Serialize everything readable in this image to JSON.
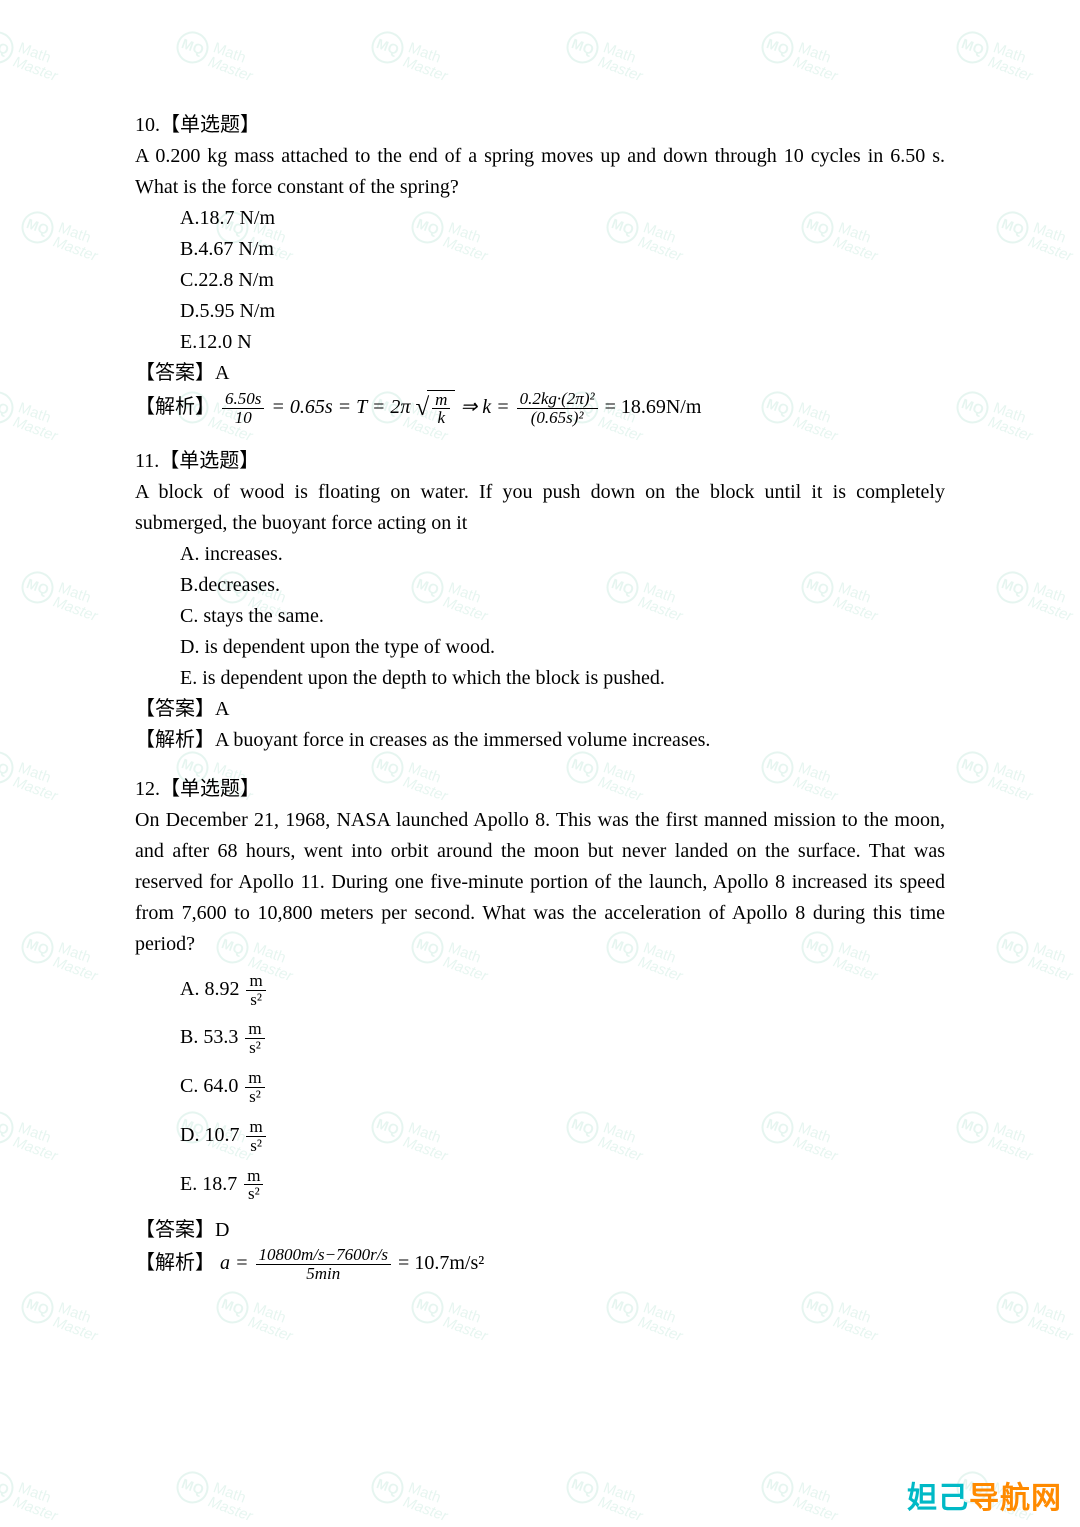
{
  "watermark": {
    "circle_text": "MQ",
    "line1": "Math",
    "line2": "Master",
    "color": "#1aa778",
    "opacity": 0.1,
    "rotation_deg": 20
  },
  "footer": {
    "part1": "妲己",
    "part2": "导航网",
    "color1": "#00b9c6",
    "color2": "#ff8a00"
  },
  "q10": {
    "number": "10.",
    "tag": "【单选题】",
    "body": "A 0.200 kg mass attached to the end of a spring moves up and down through 10 cycles in 6.50 s. What is the force constant of the spring?",
    "options": {
      "A": "A.18.7 N/m",
      "B": "B.4.67 N/m",
      "C": "C.22.8 N/m",
      "D": "D.5.95 N/m",
      "E": "E.12.0 N"
    },
    "answer_label": "【答案】",
    "answer": "A",
    "explain_label": "【解析】",
    "math": {
      "frac1_num": "6.50s",
      "frac1_den": "10",
      "eq1": " = 0.65s = T = 2π",
      "sqrt_num": "m",
      "sqrt_den": "k",
      "arrow": " ⇒ k = ",
      "frac2_num": "0.2kg·(2π)²",
      "frac2_den": "(0.65s)²",
      "result": " = 18.69N/m"
    }
  },
  "q11": {
    "number": "11.",
    "tag": "【单选题】",
    "body": "A block of wood is floating on water. If you push down on the block until it is completely submerged, the buoyant force acting on it",
    "options": {
      "A": "A. increases.",
      "B": "B.decreases.",
      "C": "C. stays the same.",
      "D": "D. is dependent upon the type of wood.",
      "E": "E. is dependent upon the depth to which the block is pushed."
    },
    "answer_label": "【答案】",
    "answer": "A",
    "explain_label": "【解析】",
    "explain": "A buoyant force in creases as the immersed volume increases."
  },
  "q12": {
    "number": "12.",
    "tag": "【单选题】",
    "body": "On December 21, 1968, NASA launched Apollo 8. This was the first manned mission to the moon, and after 68 hours, went into orbit around the moon but never landed on the surface. That was reserved for Apollo 11. During one five-minute portion of the launch, Apollo 8 increased its speed from 7,600 to 10,800 meters per second. What was the acceleration of Apollo 8 during this time period?",
    "options": {
      "A": "A. 8.92 ",
      "B": "B. 53.3 ",
      "C": "C. 64.0 ",
      "D": "D. 10.7 ",
      "E": "E. 18.7 "
    },
    "unit_num": "m",
    "unit_den": "s²",
    "answer_label": "【答案】",
    "answer": "D",
    "explain_label": "【解析】",
    "math": {
      "lhs": "a = ",
      "frac_num": "10800m/s−7600r/s",
      "frac_den": "5min",
      "result": " = 10.7m/s²"
    }
  }
}
